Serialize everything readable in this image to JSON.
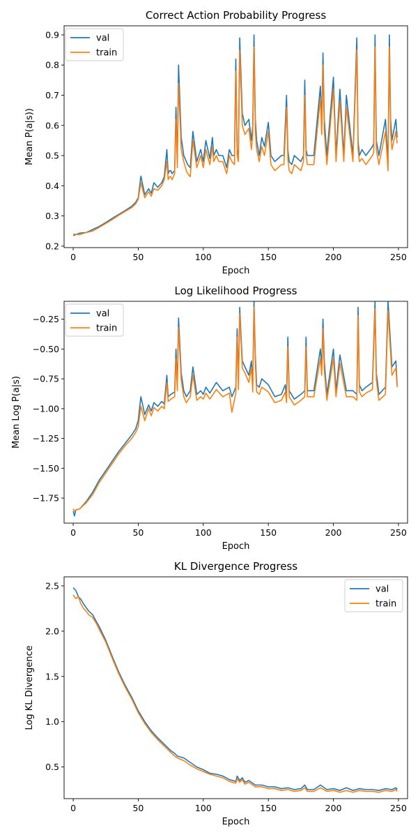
{
  "colors": {
    "val": "#1f77b4",
    "train": "#ff7f0e"
  },
  "chart_data": [
    {
      "id": "prob",
      "type": "line",
      "title": "Correct Action Probability Progress",
      "xlabel": "Epoch",
      "ylabel": "Mean P(a|s))",
      "xlim": [
        -7,
        257
      ],
      "ylim": [
        0.195,
        0.93
      ],
      "xticks": [
        {
          "v": 0,
          "label": "0"
        },
        {
          "v": 50,
          "label": "50"
        },
        {
          "v": 100,
          "label": "100"
        },
        {
          "v": 150,
          "label": "150"
        },
        {
          "v": 200,
          "label": "200"
        },
        {
          "v": 250,
          "label": "250"
        }
      ],
      "yticks": [
        {
          "v": 0.2,
          "label": "0.2"
        },
        {
          "v": 0.3,
          "label": "0.3"
        },
        {
          "v": 0.4,
          "label": "0.4"
        },
        {
          "v": 0.5,
          "label": "0.5"
        },
        {
          "v": 0.6,
          "label": "0.6"
        },
        {
          "v": 0.7,
          "label": "0.7"
        },
        {
          "v": 0.8,
          "label": "0.8"
        },
        {
          "v": 0.9,
          "label": "0.9"
        }
      ],
      "legend": "top-left",
      "grid": false,
      "x": [
        0,
        5,
        10,
        15,
        20,
        25,
        30,
        35,
        40,
        45,
        48,
        50,
        52,
        55,
        58,
        60,
        62,
        65,
        68,
        70,
        72,
        73,
        74,
        75,
        76,
        78,
        79,
        80,
        81,
        83,
        85,
        87,
        88,
        90,
        92,
        95,
        98,
        100,
        102,
        105,
        107,
        108,
        110,
        112,
        115,
        118,
        120,
        122,
        124,
        125,
        126,
        127,
        128,
        130,
        132,
        135,
        137,
        138,
        139,
        140,
        141,
        143,
        145,
        147,
        150,
        152,
        155,
        160,
        162,
        164,
        165,
        166,
        168,
        170,
        175,
        177,
        178,
        179,
        180,
        185,
        190,
        191,
        192,
        193,
        195,
        200,
        202,
        205,
        208,
        210,
        215,
        218,
        219,
        220,
        222,
        225,
        230,
        231,
        232,
        233,
        235,
        240,
        242,
        243,
        244,
        245,
        248,
        249
      ],
      "series": [
        {
          "name": "val",
          "values": [
            0.235,
            0.243,
            0.245,
            0.255,
            0.265,
            0.278,
            0.292,
            0.305,
            0.318,
            0.332,
            0.345,
            0.36,
            0.432,
            0.37,
            0.39,
            0.375,
            0.41,
            0.395,
            0.41,
            0.43,
            0.52,
            0.44,
            0.45,
            0.45,
            0.44,
            0.45,
            0.66,
            0.48,
            0.8,
            0.56,
            0.5,
            0.48,
            0.47,
            0.46,
            0.58,
            0.48,
            0.52,
            0.48,
            0.55,
            0.49,
            0.56,
            0.5,
            0.52,
            0.5,
            0.5,
            0.46,
            0.52,
            0.5,
            0.5,
            0.82,
            0.52,
            0.5,
            0.89,
            0.64,
            0.6,
            0.62,
            0.55,
            0.6,
            0.9,
            0.62,
            0.55,
            0.5,
            0.56,
            0.53,
            0.61,
            0.5,
            0.48,
            0.5,
            0.5,
            0.7,
            0.52,
            0.48,
            0.47,
            0.5,
            0.48,
            0.5,
            0.75,
            0.52,
            0.5,
            0.5,
            0.73,
            0.6,
            0.84,
            0.62,
            0.5,
            0.76,
            0.5,
            0.72,
            0.5,
            0.7,
            0.5,
            0.89,
            0.55,
            0.5,
            0.52,
            0.5,
            0.53,
            0.54,
            0.9,
            0.55,
            0.5,
            0.62,
            0.48,
            0.9,
            0.62,
            0.55,
            0.62,
            0.56
          ]
        },
        {
          "name": "train",
          "values": [
            0.24,
            0.238,
            0.245,
            0.25,
            0.262,
            0.275,
            0.288,
            0.302,
            0.315,
            0.328,
            0.34,
            0.355,
            0.41,
            0.36,
            0.38,
            0.365,
            0.39,
            0.385,
            0.4,
            0.42,
            0.48,
            0.42,
            0.43,
            0.43,
            0.42,
            0.44,
            0.62,
            0.46,
            0.74,
            0.52,
            0.48,
            0.45,
            0.44,
            0.43,
            0.55,
            0.46,
            0.5,
            0.46,
            0.52,
            0.47,
            0.53,
            0.48,
            0.5,
            0.48,
            0.48,
            0.44,
            0.5,
            0.48,
            0.47,
            0.78,
            0.5,
            0.48,
            0.85,
            0.6,
            0.57,
            0.59,
            0.52,
            0.57,
            0.86,
            0.58,
            0.52,
            0.48,
            0.53,
            0.5,
            0.58,
            0.47,
            0.45,
            0.47,
            0.47,
            0.66,
            0.49,
            0.45,
            0.44,
            0.47,
            0.45,
            0.48,
            0.7,
            0.5,
            0.47,
            0.47,
            0.69,
            0.57,
            0.8,
            0.58,
            0.47,
            0.72,
            0.48,
            0.68,
            0.48,
            0.66,
            0.48,
            0.85,
            0.52,
            0.48,
            0.49,
            0.47,
            0.5,
            0.51,
            0.86,
            0.52,
            0.47,
            0.58,
            0.45,
            0.86,
            0.58,
            0.52,
            0.58,
            0.54
          ]
        }
      ]
    },
    {
      "id": "loglik",
      "type": "line",
      "title": "Log Likelihood Progress",
      "xlabel": "Epoch",
      "ylabel": "Mean Log P(a|s)",
      "xlim": [
        -7,
        257
      ],
      "ylim": [
        -1.96,
        -0.1
      ],
      "xticks": [
        {
          "v": 0,
          "label": "0"
        },
        {
          "v": 50,
          "label": "50"
        },
        {
          "v": 100,
          "label": "100"
        },
        {
          "v": 150,
          "label": "150"
        },
        {
          "v": 200,
          "label": "200"
        },
        {
          "v": 250,
          "label": "250"
        }
      ],
      "yticks": [
        {
          "v": -1.75,
          "label": "−1.75"
        },
        {
          "v": -1.5,
          "label": "−1.50"
        },
        {
          "v": -1.25,
          "label": "−1.25"
        },
        {
          "v": -1.0,
          "label": "−1.00"
        },
        {
          "v": -0.75,
          "label": "−0.75"
        },
        {
          "v": -0.5,
          "label": "−0.50"
        },
        {
          "v": -0.25,
          "label": "−0.25"
        }
      ],
      "legend": "top-left",
      "grid": false,
      "x": [
        0,
        1,
        2,
        5,
        10,
        15,
        20,
        25,
        30,
        35,
        40,
        45,
        48,
        50,
        52,
        55,
        58,
        60,
        62,
        65,
        68,
        70,
        72,
        73,
        75,
        78,
        79,
        80,
        81,
        83,
        85,
        87,
        90,
        92,
        95,
        98,
        100,
        102,
        105,
        110,
        115,
        120,
        122,
        125,
        126,
        127,
        128,
        130,
        132,
        135,
        137,
        138,
        139,
        140,
        141,
        143,
        145,
        150,
        155,
        160,
        163,
        164,
        165,
        166,
        170,
        175,
        178,
        179,
        180,
        185,
        190,
        191,
        192,
        193,
        195,
        200,
        202,
        205,
        210,
        215,
        218,
        219,
        220,
        222,
        225,
        230,
        232,
        233,
        235,
        240,
        242,
        245,
        248,
        249
      ],
      "series": [
        {
          "name": "val",
          "values": [
            -1.86,
            -1.9,
            -1.85,
            -1.84,
            -1.78,
            -1.7,
            -1.6,
            -1.52,
            -1.44,
            -1.36,
            -1.29,
            -1.22,
            -1.17,
            -1.1,
            -0.9,
            -1.05,
            -0.97,
            -1.02,
            -0.95,
            -0.98,
            -0.94,
            -0.96,
            -0.72,
            -0.9,
            -0.88,
            -0.86,
            -0.5,
            -0.8,
            -0.24,
            -0.7,
            -0.85,
            -0.9,
            -0.85,
            -0.65,
            -0.88,
            -0.85,
            -0.88,
            -0.82,
            -0.87,
            -0.78,
            -0.85,
            -0.82,
            -0.9,
            -0.82,
            -0.33,
            -0.78,
            -0.15,
            -0.6,
            -0.65,
            -0.72,
            -0.6,
            -0.8,
            -0.1,
            -0.55,
            -0.8,
            -0.82,
            -0.75,
            -0.8,
            -0.9,
            -0.88,
            -0.8,
            -0.9,
            -0.4,
            -0.85,
            -0.92,
            -0.88,
            -0.85,
            -0.4,
            -0.85,
            -0.85,
            -0.5,
            -0.65,
            -0.25,
            -0.6,
            -0.88,
            -0.5,
            -0.85,
            -0.55,
            -0.85,
            -0.85,
            -0.88,
            -0.15,
            -0.8,
            -0.85,
            -0.82,
            -0.78,
            -0.1,
            -0.7,
            -0.88,
            -0.82,
            -0.1,
            -0.65,
            -0.6,
            -0.8
          ]
        },
        {
          "name": "train",
          "values": [
            -1.84,
            -1.86,
            -1.85,
            -1.84,
            -1.79,
            -1.72,
            -1.62,
            -1.54,
            -1.46,
            -1.38,
            -1.31,
            -1.25,
            -1.2,
            -1.15,
            -0.98,
            -1.1,
            -1.0,
            -1.06,
            -0.99,
            -1.02,
            -0.98,
            -1.0,
            -0.78,
            -0.94,
            -0.92,
            -0.9,
            -0.58,
            -0.85,
            -0.32,
            -0.76,
            -0.9,
            -0.95,
            -0.9,
            -0.72,
            -0.93,
            -0.9,
            -0.92,
            -0.87,
            -0.92,
            -0.84,
            -0.9,
            -0.87,
            -1.03,
            -0.87,
            -0.4,
            -0.84,
            -0.2,
            -0.66,
            -0.7,
            -0.78,
            -0.66,
            -0.86,
            -0.15,
            -0.62,
            -0.86,
            -0.88,
            -0.82,
            -0.86,
            -0.95,
            -0.93,
            -0.86,
            -0.95,
            -0.48,
            -0.9,
            -0.97,
            -0.93,
            -0.9,
            -0.48,
            -0.9,
            -0.9,
            -0.58,
            -0.72,
            -0.33,
            -0.68,
            -0.93,
            -0.58,
            -0.9,
            -0.62,
            -0.9,
            -0.9,
            -0.93,
            -0.22,
            -0.86,
            -0.9,
            -0.87,
            -0.84,
            -0.16,
            -0.76,
            -0.93,
            -0.88,
            -0.18,
            -0.72,
            -0.66,
            -0.82
          ]
        }
      ]
    },
    {
      "id": "kl",
      "type": "line",
      "title": "KL Divergence Progress",
      "xlabel": "Epoch",
      "ylabel": "Log KL Divergence",
      "xlim": [
        -7,
        257
      ],
      "ylim": [
        0.15,
        2.6
      ],
      "xticks": [
        {
          "v": 0,
          "label": "0"
        },
        {
          "v": 50,
          "label": "50"
        },
        {
          "v": 100,
          "label": "100"
        },
        {
          "v": 150,
          "label": "150"
        },
        {
          "v": 200,
          "label": "200"
        },
        {
          "v": 250,
          "label": "250"
        }
      ],
      "yticks": [
        {
          "v": 0.5,
          "label": "0.5"
        },
        {
          "v": 1.0,
          "label": "1.0"
        },
        {
          "v": 1.5,
          "label": "1.5"
        },
        {
          "v": 2.0,
          "label": "2.0"
        },
        {
          "v": 2.5,
          "label": "2.5"
        }
      ],
      "legend": "top-right",
      "grid": false,
      "x": [
        0,
        2,
        4,
        6,
        8,
        10,
        12,
        15,
        18,
        20,
        25,
        30,
        35,
        40,
        45,
        50,
        55,
        60,
        65,
        70,
        75,
        78,
        80,
        85,
        90,
        95,
        100,
        105,
        110,
        115,
        120,
        125,
        126,
        128,
        130,
        132,
        135,
        140,
        145,
        150,
        155,
        160,
        165,
        170,
        175,
        178,
        180,
        185,
        190,
        195,
        200,
        205,
        210,
        215,
        220,
        225,
        230,
        235,
        240,
        245,
        248,
        249
      ],
      "series": [
        {
          "name": "val",
          "values": [
            2.48,
            2.45,
            2.38,
            2.35,
            2.3,
            2.26,
            2.22,
            2.18,
            2.1,
            2.05,
            1.9,
            1.72,
            1.55,
            1.4,
            1.27,
            1.12,
            1.0,
            0.9,
            0.82,
            0.75,
            0.68,
            0.65,
            0.62,
            0.6,
            0.55,
            0.5,
            0.47,
            0.43,
            0.42,
            0.4,
            0.36,
            0.34,
            0.4,
            0.35,
            0.38,
            0.33,
            0.35,
            0.3,
            0.3,
            0.28,
            0.28,
            0.26,
            0.27,
            0.25,
            0.26,
            0.3,
            0.25,
            0.25,
            0.3,
            0.25,
            0.26,
            0.24,
            0.27,
            0.24,
            0.26,
            0.25,
            0.25,
            0.24,
            0.26,
            0.25,
            0.27,
            0.25
          ]
        },
        {
          "name": "train",
          "values": [
            2.4,
            2.36,
            2.38,
            2.3,
            2.25,
            2.22,
            2.18,
            2.15,
            2.08,
            2.02,
            1.88,
            1.7,
            1.53,
            1.38,
            1.25,
            1.1,
            0.98,
            0.88,
            0.8,
            0.73,
            0.66,
            0.62,
            0.6,
            0.57,
            0.52,
            0.48,
            0.45,
            0.42,
            0.4,
            0.38,
            0.34,
            0.32,
            0.37,
            0.33,
            0.36,
            0.31,
            0.33,
            0.28,
            0.28,
            0.26,
            0.26,
            0.24,
            0.25,
            0.23,
            0.24,
            0.27,
            0.23,
            0.23,
            0.27,
            0.23,
            0.24,
            0.22,
            0.24,
            0.22,
            0.24,
            0.23,
            0.23,
            0.22,
            0.24,
            0.23,
            0.25,
            0.23
          ]
        }
      ]
    }
  ]
}
